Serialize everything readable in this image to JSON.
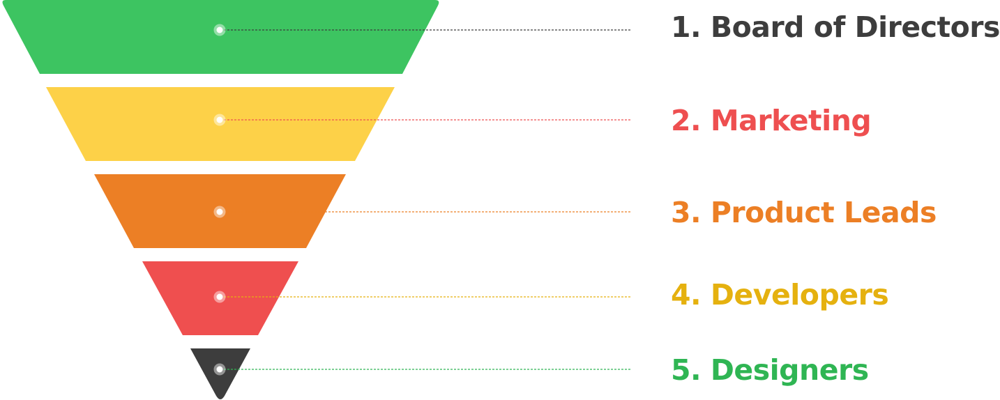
{
  "levels": [
    {
      "label": "1. Board of Directors",
      "fill": "#3DC461",
      "text_color": "#3D3D3D",
      "line_color": "#3D3D3D"
    },
    {
      "label": "2. Marketing",
      "fill": "#FDD148",
      "text_color": "#EE4F50",
      "line_color": "#EE4F50"
    },
    {
      "label": "3. Product Leads",
      "fill": "#EC7F25",
      "text_color": "#EC7F25",
      "line_color": "#EC7F25"
    },
    {
      "label": "4. Developers",
      "fill": "#EF4F4F",
      "text_color": "#E5B10F",
      "line_color": "#E5B10F"
    },
    {
      "label": "5. Designers",
      "fill": "#3D3D3D",
      "text_color": "#2FB553",
      "line_color": "#2FB553"
    }
  ],
  "marker_color": "#FFFFFF"
}
